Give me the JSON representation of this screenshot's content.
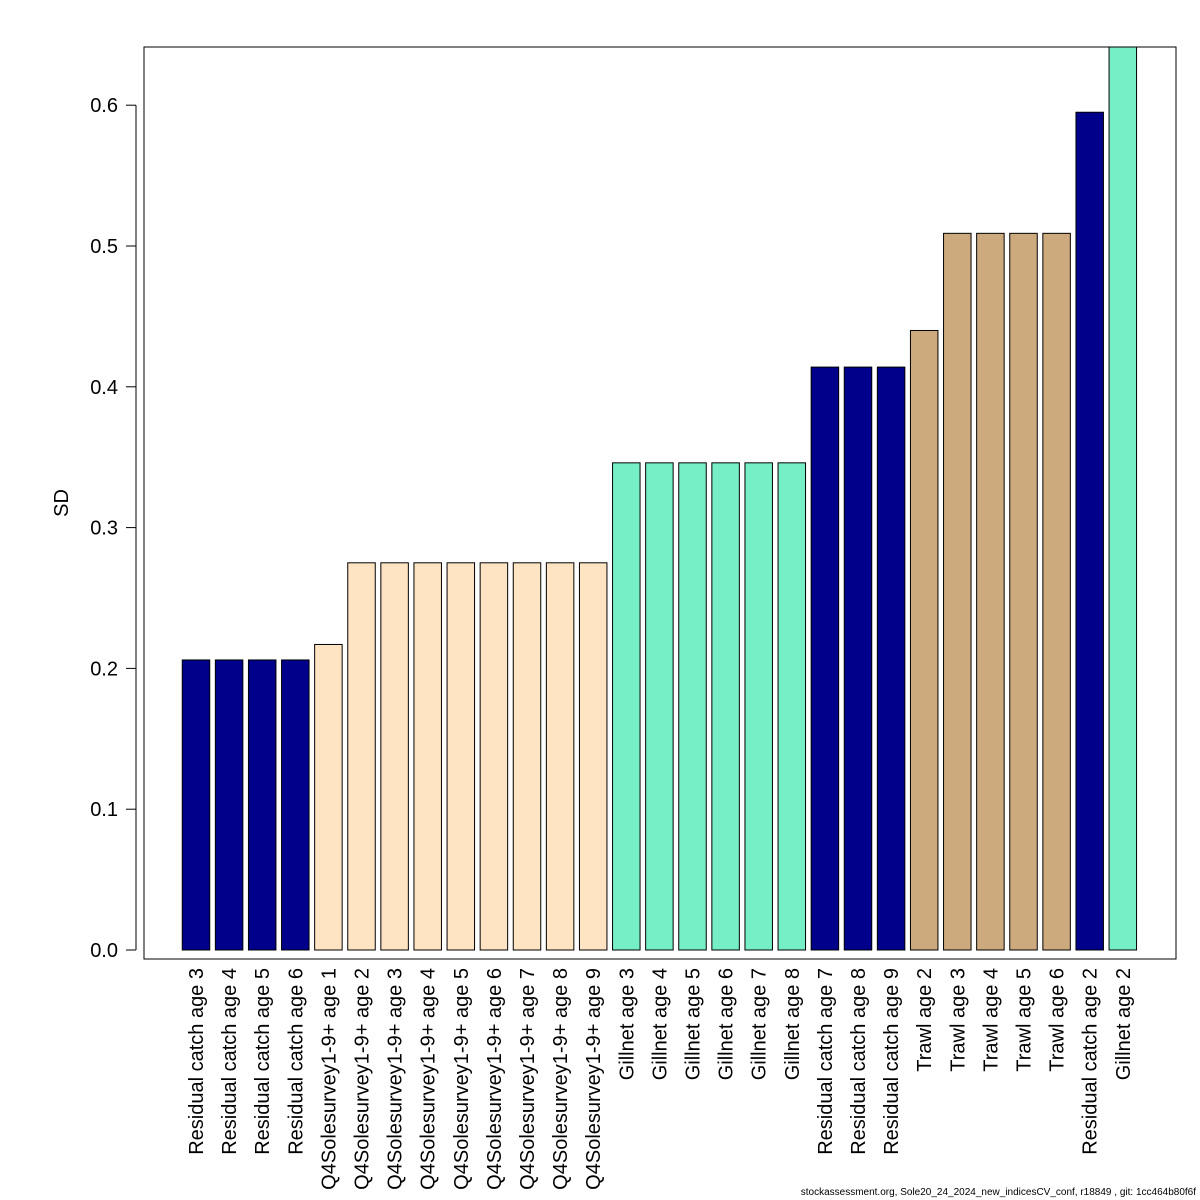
{
  "chart_data": {
    "type": "bar",
    "title": "",
    "xlabel": "",
    "ylabel": "SD",
    "ylim": [
      0,
      0.64
    ],
    "yticks": [
      0.0,
      0.1,
      0.2,
      0.3,
      0.4,
      0.5,
      0.6
    ],
    "ytick_labels": [
      "0.0",
      "0.1",
      "0.2",
      "0.3",
      "0.4",
      "0.5",
      "0.6"
    ],
    "grid": false,
    "legend": "none",
    "colors": {
      "residual_catch": "#00008B",
      "q4_survey": "#FFE4C4",
      "gillnet": "#76EEC6",
      "trawl": "#CDAA7D",
      "bar_border": "#000000",
      "axis": "#000000"
    },
    "categories": [
      "Residual catch age 3",
      "Residual catch age 4",
      "Residual catch age 5",
      "Residual catch age 6",
      "Q4Solesurvey1-9+ age 1",
      "Q4Solesurvey1-9+ age 2",
      "Q4Solesurvey1-9+ age 3",
      "Q4Solesurvey1-9+ age 4",
      "Q4Solesurvey1-9+ age 5",
      "Q4Solesurvey1-9+ age 6",
      "Q4Solesurvey1-9+ age 7",
      "Q4Solesurvey1-9+ age 8",
      "Q4Solesurvey1-9+ age 9",
      "Gillnet age 3",
      "Gillnet age 4",
      "Gillnet age 5",
      "Gillnet age 6",
      "Gillnet age 7",
      "Gillnet age 8",
      "Residual catch age 7",
      "Residual catch age 8",
      "Residual catch age 9",
      "Trawl age 2",
      "Trawl age 3",
      "Trawl age 4",
      "Trawl age 5",
      "Trawl age 6",
      "Residual catch age 2",
      "Gillnet age 2"
    ],
    "values": [
      0.206,
      0.206,
      0.206,
      0.206,
      0.217,
      0.275,
      0.275,
      0.275,
      0.275,
      0.275,
      0.275,
      0.275,
      0.275,
      0.346,
      0.346,
      0.346,
      0.346,
      0.346,
      0.346,
      0.414,
      0.414,
      0.414,
      0.44,
      0.509,
      0.509,
      0.509,
      0.509,
      0.595,
      0.645
    ],
    "bar_groups": [
      "residual_catch",
      "residual_catch",
      "residual_catch",
      "residual_catch",
      "q4_survey",
      "q4_survey",
      "q4_survey",
      "q4_survey",
      "q4_survey",
      "q4_survey",
      "q4_survey",
      "q4_survey",
      "q4_survey",
      "gillnet",
      "gillnet",
      "gillnet",
      "gillnet",
      "gillnet",
      "gillnet",
      "residual_catch",
      "residual_catch",
      "residual_catch",
      "trawl",
      "trawl",
      "trawl",
      "trawl",
      "trawl",
      "residual_catch",
      "gillnet"
    ]
  },
  "footer": {
    "text": "stockassessment.org, Sole20_24_2024_new_indicesCV_conf, r18849 , git: 1cc464b80f6f"
  }
}
